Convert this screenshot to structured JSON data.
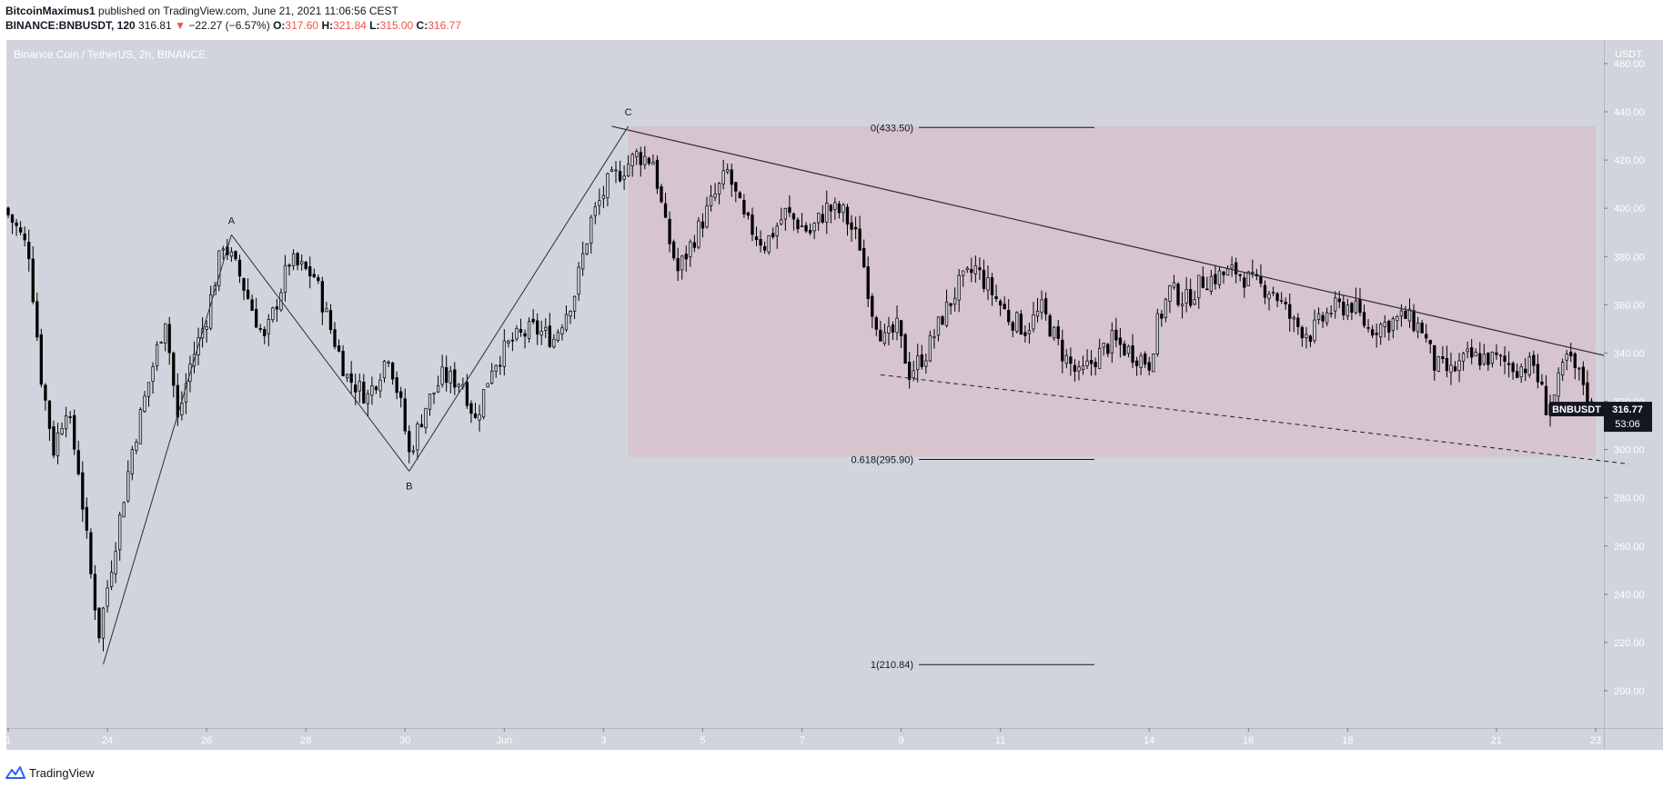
{
  "header": {
    "author": "BitcoinMaximus1",
    "published_text": "published on TradingView.com, June 21, 2021 11:06:56 CEST",
    "symbol": "BINANCE:BNBUSDT, 120",
    "last": "316.81",
    "change_arrow": "▼",
    "change": "−22.27 (−6.57%)",
    "o_label": "O:",
    "o_value": "317.60",
    "h_label": "H:",
    "h_value": "321.84",
    "l_label": "L:",
    "l_value": "315.00",
    "c_label": "C:",
    "c_value": "316.77"
  },
  "footer": {
    "brand": "TradingView",
    "icon": "tradingview-logo-icon"
  },
  "colors": {
    "pane_bg": "#d1d4dc",
    "zone_fill": "#d6c3cc",
    "candle": "#000000",
    "price_tag_bg": "#131722"
  },
  "chart_data": {
    "type": "candlestick",
    "title": "Binance Coin / TetherUS, 2h, BINANCE",
    "currency_label": "USDT",
    "x_ticks": [
      "1",
      "24",
      "26",
      "28",
      "30",
      "Jun",
      "3",
      "5",
      "7",
      "9",
      "11",
      "14",
      "16",
      "18",
      "21",
      "23"
    ],
    "x_tick_dates": [
      "2021-05-22",
      "2021-05-24",
      "2021-05-26",
      "2021-05-28",
      "2021-05-30",
      "2021-06-01",
      "2021-06-03",
      "2021-06-05",
      "2021-06-07",
      "2021-06-09",
      "2021-06-11",
      "2021-06-14",
      "2021-06-16",
      "2021-06-18",
      "2021-06-21",
      "2021-06-23"
    ],
    "y_ticks": [
      200,
      220,
      240,
      260,
      280,
      300,
      320,
      340,
      360,
      380,
      400,
      420,
      440,
      460
    ],
    "y_tick_labels": [
      "200.00",
      "220.00",
      "240.00",
      "260.00",
      "280.00",
      "300.00",
      "320.00",
      "340.00",
      "360.00",
      "380.00",
      "400.00",
      "420.00",
      "440.00",
      "460.00"
    ],
    "ylim": [
      186,
      467
    ],
    "price_path": [
      {
        "date": "2021-05-22T00:00",
        "price": 400
      },
      {
        "date": "2021-05-22T06:00",
        "price": 392
      },
      {
        "date": "2021-05-22T12:00",
        "price": 382
      },
      {
        "date": "2021-05-22T18:00",
        "price": 330
      },
      {
        "date": "2021-05-23T00:00",
        "price": 300
      },
      {
        "date": "2021-05-23T06:00",
        "price": 318
      },
      {
        "date": "2021-05-23T12:00",
        "price": 292
      },
      {
        "date": "2021-05-23T18:00",
        "price": 248
      },
      {
        "date": "2021-05-23T22:00",
        "price": 224
      },
      {
        "date": "2021-05-24T06:00",
        "price": 262
      },
      {
        "date": "2021-05-24T14:00",
        "price": 300
      },
      {
        "date": "2021-05-24T22:00",
        "price": 328
      },
      {
        "date": "2021-05-25T06:00",
        "price": 355
      },
      {
        "date": "2021-05-25T12:00",
        "price": 312
      },
      {
        "date": "2021-05-25T18:00",
        "price": 335
      },
      {
        "date": "2021-05-26T02:00",
        "price": 355
      },
      {
        "date": "2021-05-26T10:00",
        "price": 386
      },
      {
        "date": "2021-05-26T18:00",
        "price": 372
      },
      {
        "date": "2021-05-27T06:00",
        "price": 345
      },
      {
        "date": "2021-05-27T18:00",
        "price": 378
      },
      {
        "date": "2021-05-28T06:00",
        "price": 372
      },
      {
        "date": "2021-05-28T14:00",
        "price": 350
      },
      {
        "date": "2021-05-28T22:00",
        "price": 330
      },
      {
        "date": "2021-05-29T08:00",
        "price": 322
      },
      {
        "date": "2021-05-29T18:00",
        "price": 340
      },
      {
        "date": "2021-05-30T00:00",
        "price": 318
      },
      {
        "date": "2021-05-30T04:00",
        "price": 298
      },
      {
        "date": "2021-05-30T12:00",
        "price": 318
      },
      {
        "date": "2021-05-30T20:00",
        "price": 330
      },
      {
        "date": "2021-05-31T06:00",
        "price": 328
      },
      {
        "date": "2021-05-31T12:00",
        "price": 312
      },
      {
        "date": "2021-05-31T20:00",
        "price": 335
      },
      {
        "date": "2021-06-01T06:00",
        "price": 345
      },
      {
        "date": "2021-06-01T16:00",
        "price": 350
      },
      {
        "date": "2021-06-02T02:00",
        "price": 346
      },
      {
        "date": "2021-06-02T12:00",
        "price": 365
      },
      {
        "date": "2021-06-02T20:00",
        "price": 395
      },
      {
        "date": "2021-06-03T04:00",
        "price": 410
      },
      {
        "date": "2021-06-03T10:00",
        "price": 415
      },
      {
        "date": "2021-06-03T18:00",
        "price": 422
      },
      {
        "date": "2021-06-04T02:00",
        "price": 420
      },
      {
        "date": "2021-06-04T08:00",
        "price": 392
      },
      {
        "date": "2021-06-04T14:00",
        "price": 374
      },
      {
        "date": "2021-06-04T22:00",
        "price": 388
      },
      {
        "date": "2021-06-05T06:00",
        "price": 402
      },
      {
        "date": "2021-06-05T14:00",
        "price": 415
      },
      {
        "date": "2021-06-05T22:00",
        "price": 395
      },
      {
        "date": "2021-06-06T08:00",
        "price": 385
      },
      {
        "date": "2021-06-06T18:00",
        "price": 398
      },
      {
        "date": "2021-06-07T06:00",
        "price": 390
      },
      {
        "date": "2021-06-07T14:00",
        "price": 400
      },
      {
        "date": "2021-06-07T22:00",
        "price": 398
      },
      {
        "date": "2021-06-08T06:00",
        "price": 385
      },
      {
        "date": "2021-06-08T12:00",
        "price": 358
      },
      {
        "date": "2021-06-08T18:00",
        "price": 345
      },
      {
        "date": "2021-06-09T00:00",
        "price": 350
      },
      {
        "date": "2021-06-09T06:00",
        "price": 332
      },
      {
        "date": "2021-06-09T14:00",
        "price": 340
      },
      {
        "date": "2021-06-09T22:00",
        "price": 355
      },
      {
        "date": "2021-06-10T06:00",
        "price": 368
      },
      {
        "date": "2021-06-10T14:00",
        "price": 375
      },
      {
        "date": "2021-06-10T22:00",
        "price": 365
      },
      {
        "date": "2021-06-11T06:00",
        "price": 355
      },
      {
        "date": "2021-06-11T14:00",
        "price": 350
      },
      {
        "date": "2021-06-11T22:00",
        "price": 358
      },
      {
        "date": "2021-06-12T08:00",
        "price": 340
      },
      {
        "date": "2021-06-12T16:00",
        "price": 330
      },
      {
        "date": "2021-06-13T00:00",
        "price": 338
      },
      {
        "date": "2021-06-13T08:00",
        "price": 345
      },
      {
        "date": "2021-06-13T18:00",
        "price": 340
      },
      {
        "date": "2021-06-14T02:00",
        "price": 336
      },
      {
        "date": "2021-06-14T06:00",
        "price": 352
      },
      {
        "date": "2021-06-14T12:00",
        "price": 366
      },
      {
        "date": "2021-06-14T20:00",
        "price": 362
      },
      {
        "date": "2021-06-15T04:00",
        "price": 370
      },
      {
        "date": "2021-06-15T12:00",
        "price": 372
      },
      {
        "date": "2021-06-15T20:00",
        "price": 374
      },
      {
        "date": "2021-06-16T06:00",
        "price": 368
      },
      {
        "date": "2021-06-16T14:00",
        "price": 366
      },
      {
        "date": "2021-06-17T00:00",
        "price": 352
      },
      {
        "date": "2021-06-17T08:00",
        "price": 348
      },
      {
        "date": "2021-06-17T18:00",
        "price": 358
      },
      {
        "date": "2021-06-18T04:00",
        "price": 360
      },
      {
        "date": "2021-06-18T12:00",
        "price": 350
      },
      {
        "date": "2021-06-18T20:00",
        "price": 352
      },
      {
        "date": "2021-06-19T06:00",
        "price": 355
      },
      {
        "date": "2021-06-19T14:00",
        "price": 350
      },
      {
        "date": "2021-06-19T20:00",
        "price": 335
      },
      {
        "date": "2021-06-20T04:00",
        "price": 332
      },
      {
        "date": "2021-06-20T12:00",
        "price": 338
      },
      {
        "date": "2021-06-20T22:00",
        "price": 338
      },
      {
        "date": "2021-06-21T06:00",
        "price": 336
      },
      {
        "date": "2021-06-21T12:00",
        "price": 334
      },
      {
        "date": "2021-06-21T20:00",
        "price": 335
      },
      {
        "date": "2021-06-22T02:00",
        "price": 318
      },
      {
        "date": "2021-06-22T06:00",
        "price": 322
      },
      {
        "date": "2021-06-22T12:00",
        "price": 338
      },
      {
        "date": "2021-06-22T20:00",
        "price": 328
      },
      {
        "date": "2021-06-23T00:00",
        "price": 316.77
      }
    ],
    "annotations": {
      "wave_points": [
        {
          "label": "A",
          "date": "2021-05-26T12:00",
          "price": 389
        },
        {
          "label": "B",
          "date": "2021-05-30T02:00",
          "price": 291
        },
        {
          "label": "C",
          "date": "2021-06-03T12:00",
          "price": 434
        }
      ],
      "wave_start": {
        "date": "2021-05-23T22:00",
        "price": 211
      },
      "fib_levels": [
        {
          "ratio": "0",
          "price": 433.5,
          "label": "0(433.50)"
        },
        {
          "ratio": "0.618",
          "price": 295.9,
          "label": "0.618(295.90)"
        },
        {
          "ratio": "1",
          "price": 210.84,
          "label": "1(210.84)"
        }
      ],
      "zone": {
        "from": "2021-06-03T12:00",
        "to": "2021-06-23T00:00",
        "top": 434,
        "bottom": 297
      },
      "resistance_line": {
        "from": {
          "date": "2021-06-03T04:00",
          "price": 434
        },
        "to": {
          "date": "2021-06-23T04:00",
          "price": 339
        }
      },
      "support_line": {
        "from": {
          "date": "2021-06-08T14:00",
          "price": 331
        },
        "to": {
          "date": "2021-06-23T16:00",
          "price": 294
        }
      }
    },
    "price_tag": {
      "symbol": "BNBUSDT",
      "value": "316.77",
      "countdown": "53:06"
    }
  }
}
